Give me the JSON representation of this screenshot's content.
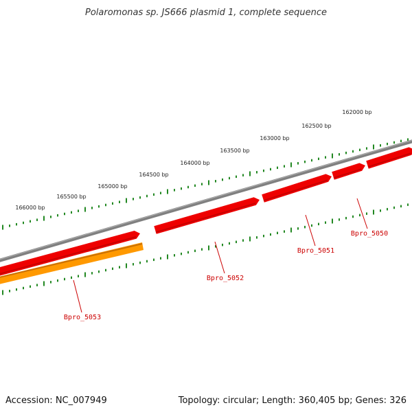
{
  "title": "Polaromonas sp. JS666 plasmid 1, complete sequence",
  "footer": {
    "accession": "Accession: NC_007949",
    "summary": "Topology: circular; Length: 360,405 bp; Genes: 326"
  },
  "scale_labels": [
    "162000 bp",
    "162500 bp",
    "163000 bp",
    "163500 bp",
    "164000 bp",
    "164500 bp",
    "165000 bp",
    "165500 bp",
    "166000 bp"
  ],
  "genes": [
    {
      "label": "Bpro_5050",
      "strand": "forward",
      "color": "#ee0000"
    },
    {
      "label": "Bpro_5051",
      "strand": "forward",
      "color": "#ee0000"
    },
    {
      "label": "Bpro_5052",
      "strand": "forward",
      "color": "#ee0000"
    },
    {
      "label": "Bpro_5053",
      "strand": "forward",
      "color": "#ee0000"
    }
  ],
  "orange_feature": {
    "label": "Bpro_5053",
    "color": "#ff9900"
  },
  "colors": {
    "backbone": "#808080",
    "tick": "#228822",
    "gene": "#ee0000",
    "gene_dark": "#aa0000",
    "cds": "#ff9900",
    "label": "#cc0000"
  }
}
